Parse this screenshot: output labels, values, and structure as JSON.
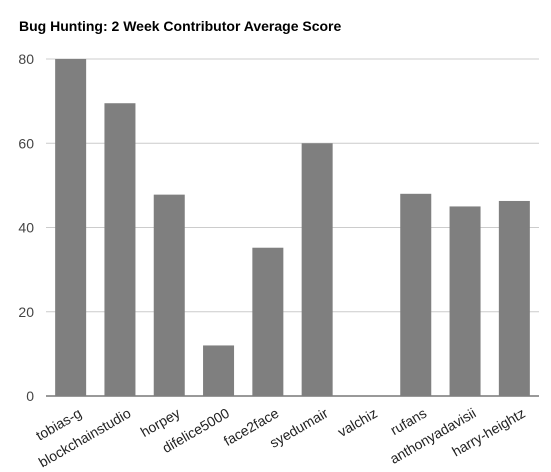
{
  "chart_data": {
    "type": "bar",
    "title": "Bug Hunting: 2 Week Contributor Average Score",
    "xlabel": "",
    "ylabel": "",
    "categories": [
      "tobias-g",
      "blockchainstudio",
      "horpey",
      "difelice5000",
      "face2face",
      "syedumair",
      "valchiz",
      "rufans",
      "anthonyadavisii",
      "harry-heightz"
    ],
    "values": [
      80,
      69.5,
      47.8,
      12,
      35.2,
      60,
      0,
      48,
      45,
      46.3
    ],
    "ylim": [
      0,
      80
    ],
    "yticks": [
      0,
      20,
      40,
      60,
      80
    ],
    "grid": true,
    "legend": "none",
    "bar_color": "#7f7f7f"
  }
}
